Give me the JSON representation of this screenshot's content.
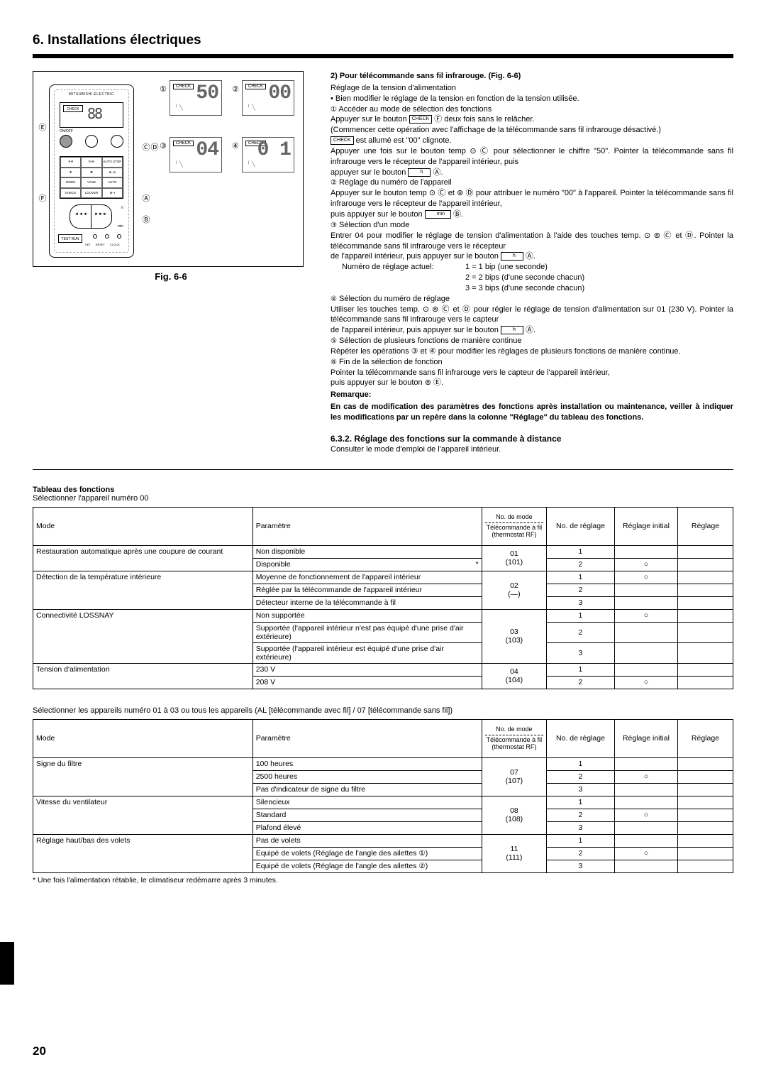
{
  "section": {
    "number": "6.",
    "title": "Installations électriques"
  },
  "figure": {
    "caption": "Fig. 6-6",
    "remote": {
      "brand": "MITSUBISHI ELECTRIC",
      "screen_label": "CHECK",
      "screen_seg": "88",
      "onoff": "ON/OFF",
      "grid": [
        "☀︎❄︎",
        "FAN",
        "AUTO STOP",
        "✻",
        "✾",
        "⊕–⊖",
        "MODE",
        "VANE",
        "AUTO START",
        "CHECK",
        "LOUVER",
        "⊕–I",
        "",
        "h",
        ""
      ],
      "testrun": "TEST RUN",
      "min": "min",
      "dot_labels": [
        "SET",
        "RESET",
        "CLOCK"
      ]
    },
    "callouts": {
      "c1": "①",
      "c2": "②",
      "c3": "③",
      "c4": "④",
      "cE": "Ⓔ",
      "cF": "Ⓕ",
      "cC": "Ⓒ",
      "cD": "Ⓓ",
      "cA": "Ⓐ",
      "cB": "Ⓑ"
    },
    "mini": [
      {
        "tag": "CHECK",
        "seg": "50",
        "ind": "╵ ╲"
      },
      {
        "tag": "CHECK",
        "seg": "00",
        "ind": "╵ ╲"
      },
      {
        "tag": "CHECK",
        "seg": "04",
        "ind": "╵ ╲"
      },
      {
        "tag": "CHECK",
        "seg": "0 1",
        "ind": "╵ ╲"
      }
    ]
  },
  "text": {
    "h2": "2)  Pour télécommande sans fil infrarouge. (Fig. 6-6)",
    "p1": "Réglage de la tension d'alimentation",
    "p2": "• Bien modifier le réglage de la tension en fonction de la tension utilisée.",
    "p3a": "①",
    "p3b": "Accéder au mode de sélection des fonctions",
    "p4a": "Appuyer sur le bouton",
    "p4btn": "CHECK",
    "p4b": "Ⓕ deux fois sans le relâcher.",
    "p5": "(Commencer cette opération avec l'affichage de la télécommande sans fil infrarouge désactivé.)",
    "p6box": "CHECK",
    "p6": " est allumé est \"00\" clignote.",
    "p7": "Appuyer une fois sur le bouton temp ⊙ Ⓒ pour sélectionner le chiffre \"50\". Pointer la télécommande sans fil infrarouge vers le récepteur de l'appareil intérieur, puis",
    "p7b_a": "appuyer sur le bouton",
    "p7b_btn": "h",
    "p7b_b": "Ⓐ.",
    "p8a": "②",
    "p8b": "Réglage du numéro de l'appareil",
    "p9": "Appuyer sur le bouton temp ⊙ Ⓒ et ⊚ Ⓓ pour attribuer le numéro \"00\" à l'appareil. Pointer la télécommande sans fil infrarouge vers le récepteur de l'appareil intérieur,",
    "p9b_a": "puis appuyer sur le bouton",
    "p9b_btn": "min",
    "p9b_b": "Ⓑ.",
    "p10a": "③",
    "p10b": "Sélection d'un mode",
    "p11": "Entrer 04 pour modifier le réglage de tension d'alimentation à l'aide des touches temp. ⊙ ⊚ Ⓒ et Ⓓ. Pointer la télécommande sans fil infrarouge vers le récepteur",
    "p11b_a": "de l'appareil intérieur, puis appuyer sur le bouton",
    "p11b_btn": "h",
    "p11b_b": "Ⓐ.",
    "p12l": "Numéro de réglage actuel:",
    "p12a": "1 = 1 bip (une seconde)",
    "p12b": "2 = 2 bips (d'une seconde chacun)",
    "p12c": "3 = 3 bips (d'une seconde chacun)",
    "p13a": "④",
    "p13b": "Sélection du numéro de réglage",
    "p14": "Utiliser les touches temp. ⊙ ⊚ Ⓒ et Ⓓ pour régler le réglage de tension d'alimentation sur 01 (230 V). Pointer la télécommande sans fil infrarouge vers le capteur",
    "p14b_a": "de l'appareil intérieur, puis appuyer sur le bouton",
    "p14b_btn": "h",
    "p14b_b": "Ⓐ.",
    "p15a": "⑤",
    "p15b": "Sélection de plusieurs fonctions de manière continue",
    "p16": "Répéter les opérations ③ et ④ pour modifier les règlages de plusieurs fonctions de manière continue.",
    "p17a": "⑥",
    "p17b": "Fin de la sélection de fonction",
    "p18": "Pointer la télécommande sans fil infrarouge vers le capteur de l'appareil intérieur,",
    "p18b": "puis appuyer sur le bouton ⊚ Ⓔ.",
    "rem_label": "Remarque:",
    "rem": "En cas de modification des paramètres des fonctions après installation ou maintenance, veiller à indiquer les modifications par un repère dans la colonne \"Réglage\" du tableau des fonctions.",
    "sec632": "6.3.2.  Réglage des fonctions sur la commande à distance",
    "sec632b": "Consulter le mode d'emploi de l'appareil intérieur."
  },
  "tables": {
    "title": "Tableau des fonctions",
    "sub1": "Sélectionner l'appareil numéro 00",
    "hdr": {
      "mode": "Mode",
      "param": "Paramètre",
      "num1": "No. de mode",
      "num2": "Télécommande à fil",
      "num3": "(thermostat RF)",
      "reg": "No. de réglage",
      "init": "Réglage initial",
      "set": "Réglage"
    },
    "t1": [
      {
        "mode": "Restauration automatique après une coupure de courant",
        "rows": [
          {
            "p": "Non disponible",
            "n": "1",
            "i": ""
          },
          {
            "p": "Disponible",
            "star": "*",
            "n": "2",
            "i": "○"
          }
        ],
        "num": "01",
        "numb": "(101)"
      },
      {
        "mode": "Détection de la température intérieure",
        "rows": [
          {
            "p": "Moyenne de fonctionnement de l'appareil intérieur",
            "n": "1",
            "i": "○"
          },
          {
            "p": "Réglée par la télécommande de l'appareil intérieur",
            "n": "2",
            "i": ""
          },
          {
            "p": "Détecteur interne de la télécommande à fil",
            "n": "3",
            "i": ""
          }
        ],
        "num": "02",
        "numb": "(—)"
      },
      {
        "mode": "Connectivité LOSSNAY",
        "rows": [
          {
            "p": "Non supportée",
            "n": "1",
            "i": "○"
          },
          {
            "p": "Supportée (l'appareil intérieur n'est pas équipé d'une prise d'air extérieure)",
            "n": "2",
            "i": ""
          },
          {
            "p": "Supportée (l'appareil intérieur est équipé d'une prise d'air extérieure)",
            "n": "3",
            "i": ""
          }
        ],
        "num": "03",
        "numb": "(103)"
      },
      {
        "mode": "Tension d'alimentation",
        "rows": [
          {
            "p": "230 V",
            "n": "1",
            "i": ""
          },
          {
            "p": "208 V",
            "n": "2",
            "i": "○"
          }
        ],
        "num": "04",
        "numb": "(104)"
      }
    ],
    "between": "Sélectionner les appareils numéro 01 à 03 ou tous les appareils (AL [télécommande avec fil] / 07 [télécommande sans fil])",
    "t2": [
      {
        "mode": "Signe du filtre",
        "rows": [
          {
            "p": "100 heures",
            "n": "1",
            "i": ""
          },
          {
            "p": "2500 heures",
            "n": "2",
            "i": "○"
          },
          {
            "p": "Pas d'indicateur de signe du filtre",
            "n": "3",
            "i": ""
          }
        ],
        "num": "07",
        "numb": "(107)"
      },
      {
        "mode": "Vitesse du ventilateur",
        "rows": [
          {
            "p": "Silencieux",
            "n": "1",
            "i": ""
          },
          {
            "p": "Standard",
            "n": "2",
            "i": "○"
          },
          {
            "p": "Plafond élevé",
            "n": "3",
            "i": ""
          }
        ],
        "num": "08",
        "numb": "(108)"
      },
      {
        "mode": "Réglage haut/bas des volets",
        "rows": [
          {
            "p": "Pas de volets",
            "n": "1",
            "i": ""
          },
          {
            "p": "Equipé de volets (Réglage de l'angle des ailettes ①)",
            "n": "2",
            "i": "○"
          },
          {
            "p": "Equipé de volets (Réglage de l'angle des ailettes ②)",
            "n": "3",
            "i": ""
          }
        ],
        "num": "11",
        "numb": "(111)"
      }
    ],
    "footnote": "* Une fois l'alimentation rétablie, le climatiseur redémarre après 3 minutes."
  },
  "page": "20"
}
